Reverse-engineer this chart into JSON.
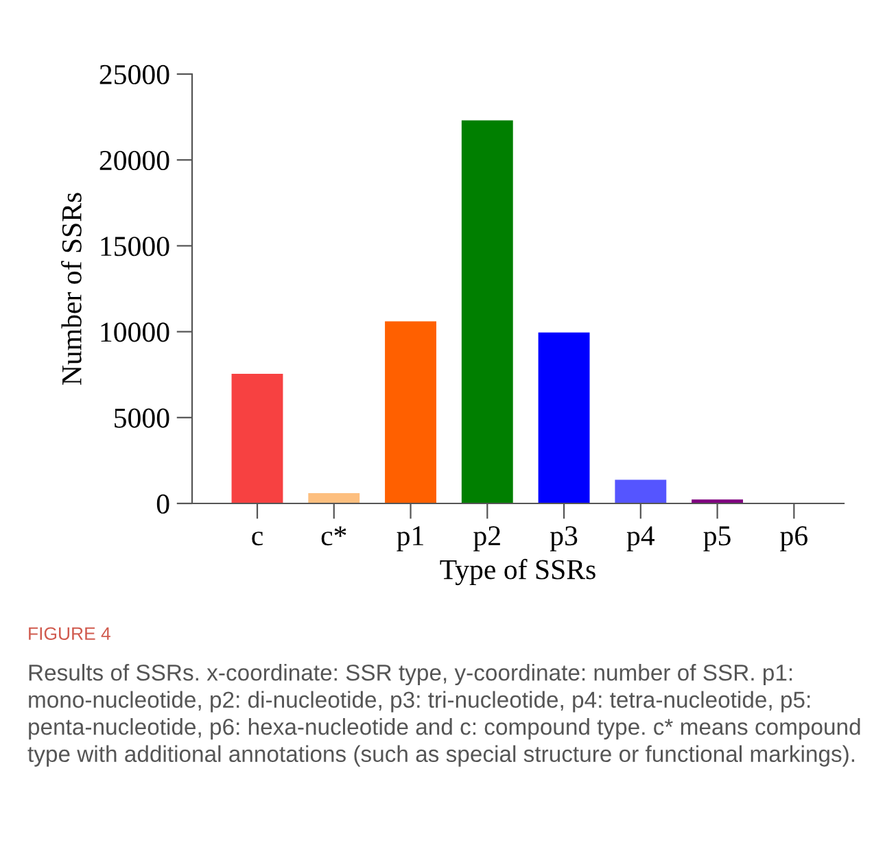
{
  "chart_data": {
    "type": "bar",
    "xlabel": "Type of SSRs",
    "ylabel": "Number of SSRs",
    "categories": [
      "c",
      "c*",
      "p1",
      "p2",
      "p3",
      "p4",
      "p5",
      "p6"
    ],
    "values": [
      7550,
      600,
      10600,
      22300,
      9950,
      1380,
      230,
      10
    ],
    "colors": [
      "#f74141",
      "#fdbf7f",
      "#ff6000",
      "#007f00",
      "#0000ff",
      "#5555ff",
      "#7f007f",
      "#000000"
    ],
    "ylim": [
      0,
      25000
    ],
    "yticks": [
      0,
      5000,
      10000,
      15000,
      20000,
      25000
    ],
    "grid": false,
    "legend": false,
    "annotations": [
      "FIGURE 4",
      "Results of SSRs. x-coordinate: SSR type, y-coordinate: number of SSR. p1: mono-nucleotide, p2: di-nucleotide, p3: tri-nucleotide, p4: tetra-nucleotide, p5: penta-nucleotide, p6: hexa-nucleotide and c: compound type. c* means compound type with additional annotations (such as special structure or functional markings)."
    ]
  }
}
